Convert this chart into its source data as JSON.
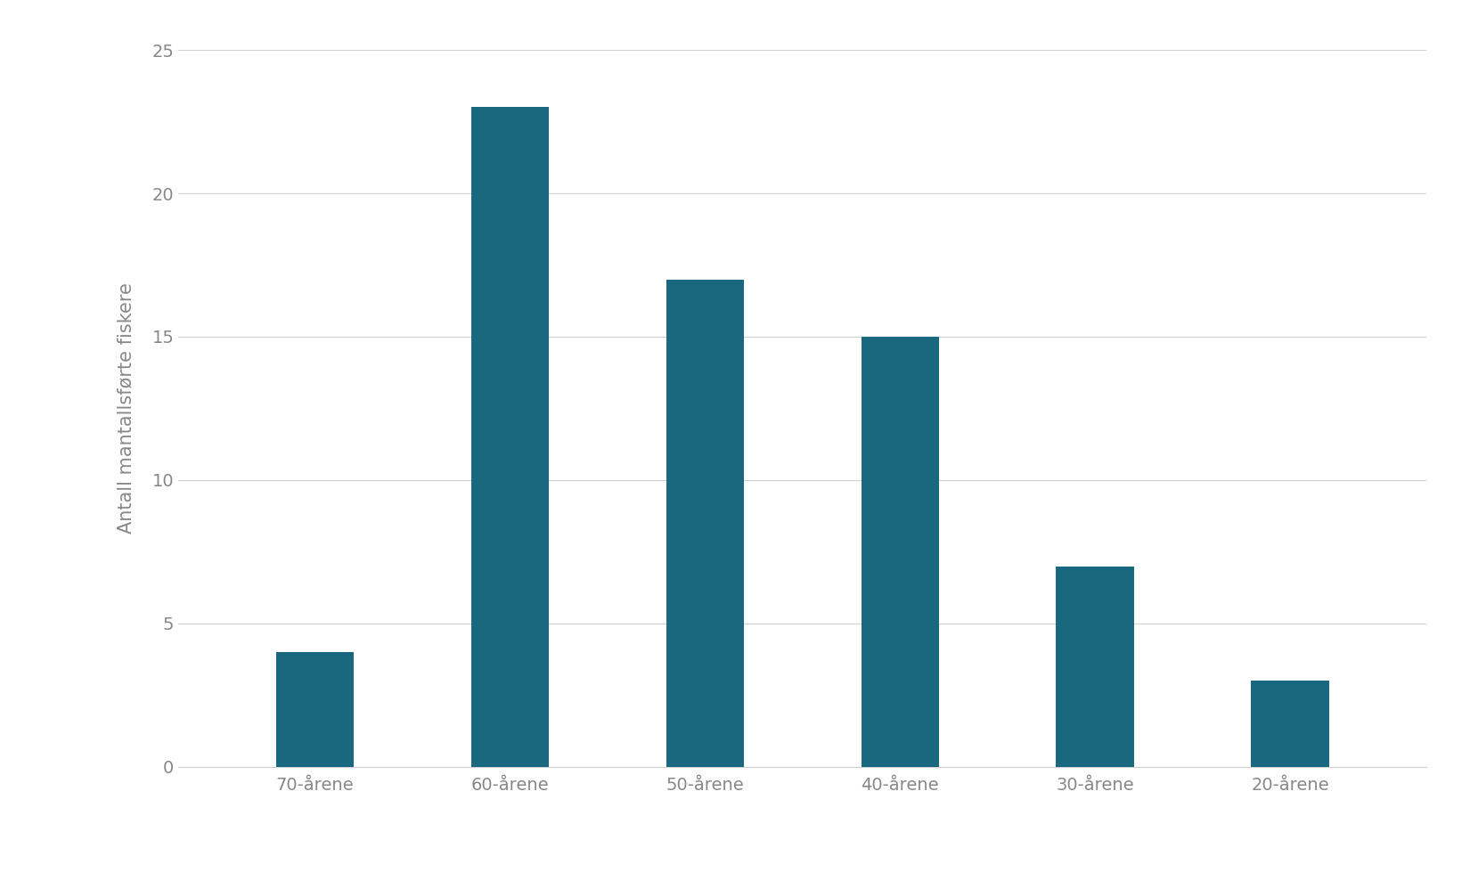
{
  "categories": [
    "70-årene",
    "60-årene",
    "50-årene",
    "40-årene",
    "30-årene",
    "20-årene"
  ],
  "values": [
    4,
    23,
    17,
    15,
    7,
    3
  ],
  "bar_color": "#1a6880",
  "ylabel": "Antall mantallsførte fiskere",
  "ylim": [
    0,
    25
  ],
  "yticks": [
    0,
    5,
    10,
    15,
    20,
    25
  ],
  "background_color": "#ffffff",
  "bar_width": 0.4,
  "ylabel_fontsize": 15,
  "tick_fontsize": 14,
  "grid_color": "#d0d0d0",
  "tick_color": "#888888"
}
